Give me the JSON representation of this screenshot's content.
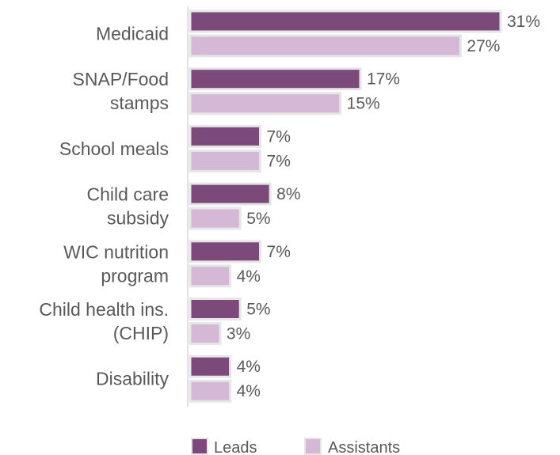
{
  "chart_data": {
    "type": "bar",
    "orientation": "horizontal",
    "categories": [
      [
        "Medicaid"
      ],
      [
        "SNAP/Food",
        "stamps"
      ],
      [
        "School meals"
      ],
      [
        "Child care",
        "subsidy"
      ],
      [
        "WIC nutrition",
        "program"
      ],
      [
        "Child health ins.",
        "(CHIP)"
      ],
      [
        "Disability"
      ]
    ],
    "series": [
      {
        "name": "Leads",
        "values": [
          31,
          17,
          7,
          8,
          7,
          5,
          4
        ],
        "color": "#7b4a7a"
      },
      {
        "name": "Assistants",
        "values": [
          27,
          15,
          7,
          5,
          4,
          3,
          4
        ],
        "color": "#d5b8d6"
      }
    ],
    "value_suffix": "%",
    "xlim": [
      0,
      31
    ],
    "grid": false,
    "legend": "bottom"
  }
}
